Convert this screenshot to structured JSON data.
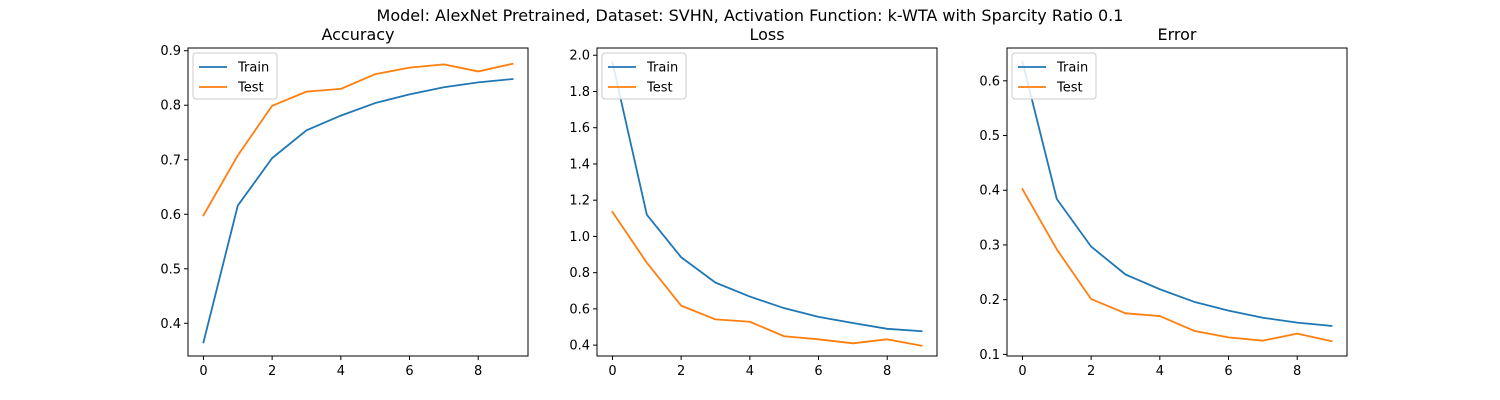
{
  "figure": {
    "suptitle": "Model: AlexNet Pretrained, Dataset: SVHN, Activation Function: k-WTA with Sparcity Ratio 0.1"
  },
  "colors": {
    "train": "#1f77b4",
    "test": "#ff7f0e"
  },
  "chart_data": [
    {
      "type": "line",
      "title": "Accuracy",
      "xlabel": "",
      "ylabel": "",
      "x": [
        0,
        1,
        2,
        3,
        4,
        5,
        6,
        7,
        8,
        9
      ],
      "xlim": [
        -0.45,
        9.45
      ],
      "ylim": [
        0.34,
        0.905
      ],
      "xticks": [
        0,
        2,
        4,
        6,
        8
      ],
      "yticks": [
        0.4,
        0.5,
        0.6,
        0.7,
        0.8,
        0.9
      ],
      "ytick_labels": [
        "0.4",
        "0.5",
        "0.6",
        "0.7",
        "0.8",
        "0.9"
      ],
      "grid": false,
      "legend": "top-left",
      "series": [
        {
          "name": "Train",
          "values": [
            0.365,
            0.616,
            0.703,
            0.754,
            0.781,
            0.804,
            0.82,
            0.833,
            0.842,
            0.848
          ]
        },
        {
          "name": "Test",
          "values": [
            0.598,
            0.708,
            0.799,
            0.825,
            0.83,
            0.857,
            0.869,
            0.875,
            0.862,
            0.876
          ]
        }
      ]
    },
    {
      "type": "line",
      "title": "Loss",
      "xlabel": "",
      "ylabel": "",
      "x": [
        0,
        1,
        2,
        3,
        4,
        5,
        6,
        7,
        8,
        9
      ],
      "xlim": [
        -0.45,
        9.45
      ],
      "ylim": [
        0.34,
        2.04
      ],
      "xticks": [
        0,
        2,
        4,
        6,
        8
      ],
      "yticks": [
        0.4,
        0.6,
        0.8,
        1.0,
        1.2,
        1.4,
        1.6,
        1.8,
        2.0
      ],
      "ytick_labels": [
        "0.4",
        "0.6",
        "0.8",
        "1.0",
        "1.2",
        "1.4",
        "1.6",
        "1.8",
        "2.0"
      ],
      "grid": false,
      "legend": "top-left",
      "series": [
        {
          "name": "Train",
          "values": [
            1.96,
            1.12,
            0.885,
            0.745,
            0.668,
            0.604,
            0.556,
            0.522,
            0.49,
            0.477
          ]
        },
        {
          "name": "Test",
          "values": [
            1.135,
            0.855,
            0.618,
            0.542,
            0.529,
            0.449,
            0.432,
            0.41,
            0.432,
            0.397
          ]
        }
      ]
    },
    {
      "type": "line",
      "title": "Error",
      "xlabel": "",
      "ylabel": "",
      "x": [
        0,
        1,
        2,
        3,
        4,
        5,
        6,
        7,
        8,
        9
      ],
      "xlim": [
        -0.45,
        9.45
      ],
      "ylim": [
        0.097,
        0.66
      ],
      "xticks": [
        0,
        2,
        4,
        6,
        8
      ],
      "yticks": [
        0.1,
        0.2,
        0.3,
        0.4,
        0.5,
        0.6
      ],
      "ytick_labels": [
        "0.1",
        "0.2",
        "0.3",
        "0.4",
        "0.5",
        "0.6"
      ],
      "grid": false,
      "legend": "top-left",
      "series": [
        {
          "name": "Train",
          "values": [
            0.635,
            0.384,
            0.297,
            0.246,
            0.219,
            0.196,
            0.18,
            0.167,
            0.158,
            0.152
          ]
        },
        {
          "name": "Test",
          "values": [
            0.402,
            0.292,
            0.201,
            0.175,
            0.17,
            0.143,
            0.131,
            0.125,
            0.138,
            0.124
          ]
        }
      ]
    }
  ]
}
